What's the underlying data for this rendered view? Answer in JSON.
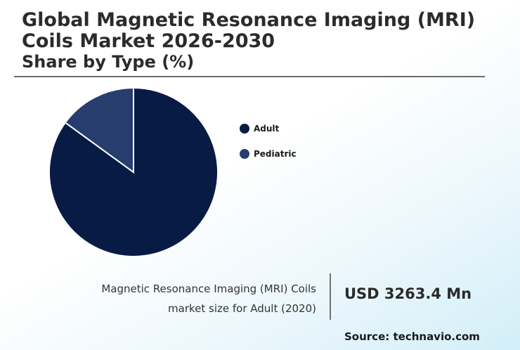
{
  "header": {
    "title": "Global Magnetic Resonance Imaging (MRI) Coils Market 2026-2030",
    "subtitle": "Share by Type (%)"
  },
  "chart_data": {
    "type": "pie",
    "categories": [
      "Adult",
      "Pediatric"
    ],
    "values": [
      85,
      15
    ],
    "colors": [
      "#071b44",
      "#273d6e"
    ],
    "legend_position": "right",
    "start_angle_deg": 0
  },
  "legend": {
    "items": [
      {
        "label": "Adult",
        "color": "#071b44"
      },
      {
        "label": "Pediatric",
        "color": "#273d6e"
      }
    ]
  },
  "footer": {
    "caption_line1": "Magnetic Resonance Imaging (MRI) Coils",
    "caption_line2": "market size for Adult (2020)",
    "value": "USD 3263.4 Mn",
    "source": "Source: technavio.com"
  }
}
